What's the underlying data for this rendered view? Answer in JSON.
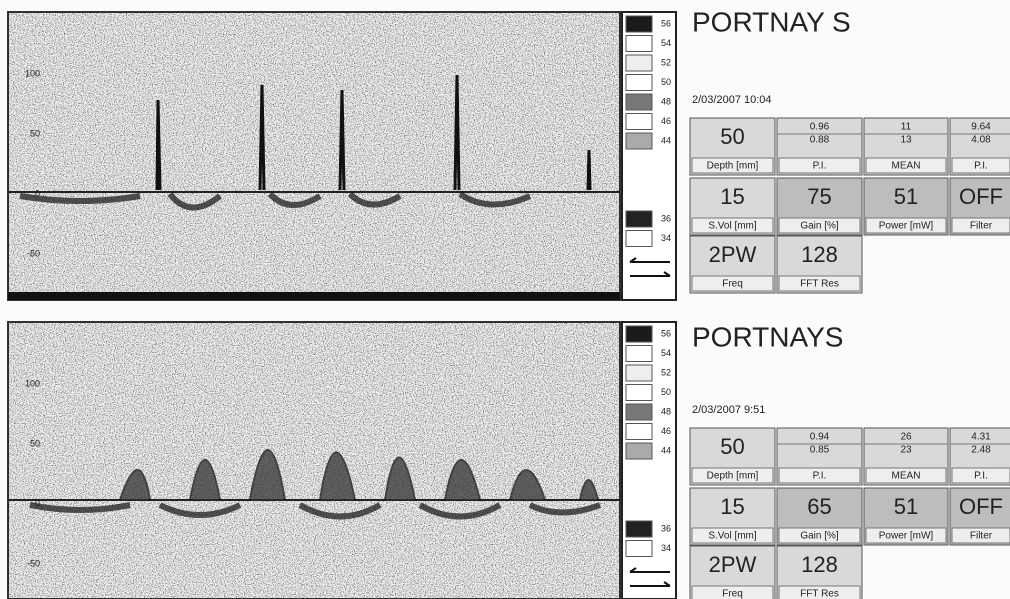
{
  "panels": [
    {
      "title": "PORTNAY S",
      "date": "2/03/2007 10:04",
      "axis": [
        "100",
        "50",
        "0",
        "-50"
      ],
      "scale": [
        "56",
        "54",
        "52",
        "50",
        "48",
        "46",
        "44",
        "36",
        "34"
      ],
      "cells": [
        {
          "values": [
            "50"
          ],
          "label": "Depth [mm]"
        },
        {
          "values": [
            "0.96",
            "0.88"
          ],
          "label": "P.I."
        },
        {
          "values": [
            "11",
            "13"
          ],
          "label": "MEAN"
        },
        {
          "values": [
            "9.64",
            "4.08"
          ],
          "label": "P.I."
        },
        {
          "values": [
            "15"
          ],
          "label": "S.Vol [mm]"
        },
        {
          "values": [
            "75"
          ],
          "label": "Gain [%]"
        },
        {
          "values": [
            "51"
          ],
          "label": "Power [mW]"
        },
        {
          "values": [
            "OFF"
          ],
          "label": "Filter"
        },
        {
          "values": [
            "2PW"
          ],
          "label": "Freq"
        },
        {
          "values": [
            "128"
          ],
          "label": "FFT Res"
        }
      ]
    },
    {
      "title": "PORTNAYS",
      "date": "2/03/2007 9:51",
      "axis": [
        "100",
        "50",
        "0",
        "-50"
      ],
      "scale": [
        "56",
        "54",
        "52",
        "50",
        "48",
        "46",
        "44",
        "36",
        "34"
      ],
      "cells": [
        {
          "values": [
            "50"
          ],
          "label": "Depth [mm]"
        },
        {
          "values": [
            "0.94",
            "0.85"
          ],
          "label": "P.I."
        },
        {
          "values": [
            "26",
            "23"
          ],
          "label": "MEAN"
        },
        {
          "values": [
            "4.31",
            "2.48"
          ],
          "label": "P.I."
        },
        {
          "values": [
            "15"
          ],
          "label": "S.Vol [mm]"
        },
        {
          "values": [
            "65"
          ],
          "label": "Gain [%]"
        },
        {
          "values": [
            "51"
          ],
          "label": "Power [mW]"
        },
        {
          "values": [
            "OFF"
          ],
          "label": "Filter"
        },
        {
          "values": [
            "2PW"
          ],
          "label": "Freq"
        },
        {
          "values": [
            "128"
          ],
          "label": "FFT Res"
        }
      ]
    }
  ]
}
